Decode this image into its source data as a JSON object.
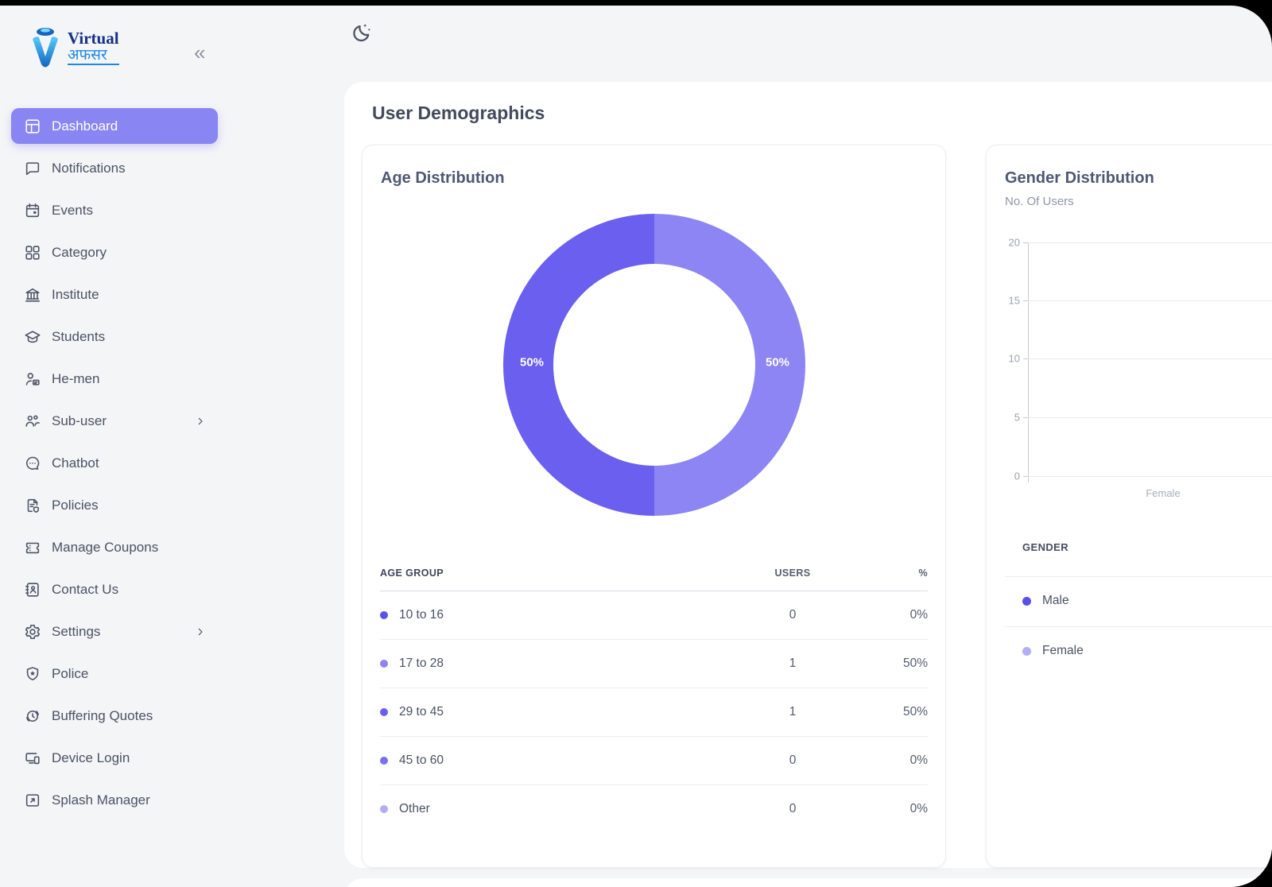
{
  "brand": {
    "name_line1": "Virtual",
    "name_line2": "अफसर"
  },
  "window": {
    "collapse_icon": "«"
  },
  "sidebar": {
    "items": [
      {
        "label": "Dashboard",
        "icon": "dashboard",
        "active": true,
        "expandable": false
      },
      {
        "label": "Notifications",
        "icon": "chat-bubble",
        "active": false,
        "expandable": false
      },
      {
        "label": "Events",
        "icon": "calendar",
        "active": false,
        "expandable": false
      },
      {
        "label": "Category",
        "icon": "grid",
        "active": false,
        "expandable": false
      },
      {
        "label": "Institute",
        "icon": "bank",
        "active": false,
        "expandable": false
      },
      {
        "label": "Students",
        "icon": "graduation",
        "active": false,
        "expandable": false
      },
      {
        "label": "He-men",
        "icon": "person-card",
        "active": false,
        "expandable": false
      },
      {
        "label": "Sub-user",
        "icon": "user-group",
        "active": false,
        "expandable": true
      },
      {
        "label": "Chatbot",
        "icon": "chat-dots",
        "active": false,
        "expandable": false
      },
      {
        "label": "Policies",
        "icon": "doc-shield",
        "active": false,
        "expandable": false
      },
      {
        "label": "Manage Coupons",
        "icon": "ticket",
        "active": false,
        "expandable": false
      },
      {
        "label": "Contact Us",
        "icon": "contact-book",
        "active": false,
        "expandable": false
      },
      {
        "label": "Settings",
        "icon": "gear",
        "active": false,
        "expandable": true
      },
      {
        "label": "Police",
        "icon": "shield-star",
        "active": false,
        "expandable": false
      },
      {
        "label": "Buffering Quotes",
        "icon": "clock",
        "active": false,
        "expandable": false
      },
      {
        "label": "Device Login",
        "icon": "devices",
        "active": false,
        "expandable": false
      },
      {
        "label": "Splash Manager",
        "icon": "splash",
        "active": false,
        "expandable": false
      }
    ]
  },
  "main": {
    "title": "User Demographics",
    "age_distribution": {
      "title": "Age Distribution",
      "donut": {
        "left_label": "50%",
        "right_label": "50%",
        "left_color": "#6A5FEE",
        "right_color": "#8C85F3"
      },
      "table": {
        "headers": {
          "group": "AGE GROUP",
          "users": "USERS",
          "pct": "%"
        },
        "rows": [
          {
            "label": "10 to 16",
            "users": "0",
            "pct": "0%",
            "color": "#5851E8"
          },
          {
            "label": "17 to 28",
            "users": "1",
            "pct": "50%",
            "color": "#8C85F3"
          },
          {
            "label": "29 to 45",
            "users": "1",
            "pct": "50%",
            "color": "#6A5FEE"
          },
          {
            "label": "45 to 60",
            "users": "0",
            "pct": "0%",
            "color": "#7A70F0"
          },
          {
            "label": "Other",
            "users": "0",
            "pct": "0%",
            "color": "#B2ADF6"
          }
        ]
      }
    },
    "gender_distribution": {
      "title": "Gender Distribution",
      "subtitle": "No. Of Users",
      "y_ticks": [
        "20",
        "15",
        "10",
        "5",
        "0"
      ],
      "x_labels": [
        "Female"
      ],
      "legend_header": "GENDER",
      "legend": [
        {
          "label": "Male",
          "color": "#5851E8"
        },
        {
          "label": "Female",
          "color": "#B2ADF6"
        }
      ]
    }
  },
  "chart_data": [
    {
      "type": "pie",
      "title": "Age Distribution",
      "labels": [
        "10 to 16",
        "17 to 28",
        "29 to 45",
        "45 to 60",
        "Other"
      ],
      "values": [
        0,
        1,
        1,
        0,
        0
      ],
      "percentages": [
        0,
        50,
        50,
        0,
        0
      ],
      "colors": [
        "#5851E8",
        "#8C85F3",
        "#6A5FEE",
        "#7A70F0",
        "#B2ADF6"
      ],
      "donut": true,
      "visible_slice_labels": [
        "50%",
        "50%"
      ]
    },
    {
      "type": "bar",
      "title": "Gender Distribution",
      "subtitle": "No. Of Users",
      "categories": [
        "Female"
      ],
      "series": [
        {
          "name": "Male",
          "color": "#5851E8"
        },
        {
          "name": "Female",
          "color": "#B2ADF6"
        }
      ],
      "ylim": [
        0,
        20
      ],
      "y_ticks": [
        0,
        5,
        10,
        15,
        20
      ],
      "grid": true,
      "legend_position": "bottom"
    }
  ]
}
